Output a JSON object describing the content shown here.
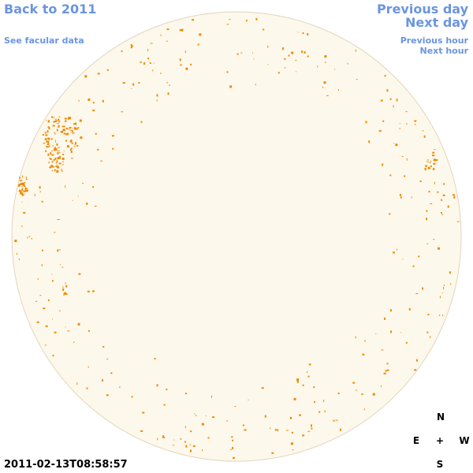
{
  "nav": {
    "back_year": "Back to 2011",
    "facular": "See facular data",
    "previous_day": "Previous day",
    "next_day": "Next day",
    "previous_hour": "Previous hour",
    "next_hour": "Next hour"
  },
  "timestamp": "2011-02-13T08:58:57",
  "compass": {
    "north": "N",
    "east": "E",
    "center": "+",
    "west": "W",
    "south": "S"
  }
}
